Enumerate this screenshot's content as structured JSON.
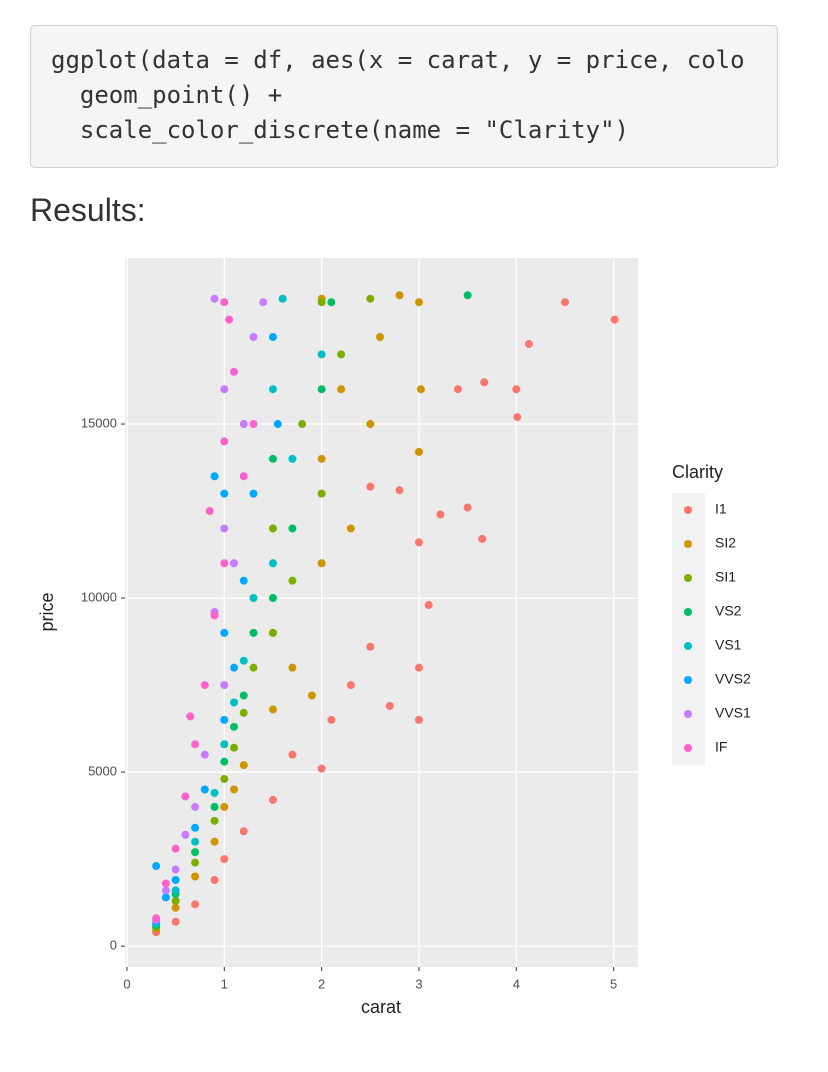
{
  "code": {
    "lines": [
      "ggplot(data = df, aes(x = carat, y = price, colo",
      "  geom_point() +",
      "  scale_color_discrete(name = \"Clarity\")"
    ]
  },
  "heading": "Results:",
  "chart_data": {
    "type": "scatter",
    "xlabel": "carat",
    "ylabel": "price",
    "legend_title": "Clarity",
    "xlim": [
      -0.02,
      5.25
    ],
    "ylim": [
      -600,
      19770
    ],
    "xticks": [
      0,
      1,
      2,
      3,
      4,
      5
    ],
    "yticks": [
      0,
      5000,
      10000,
      15000
    ],
    "grid": true,
    "legend": "right",
    "series": [
      {
        "name": "I1",
        "color": "#F8766D",
        "x": [
          0.3,
          0.5,
          0.7,
          0.9,
          1.0,
          1.2,
          1.5,
          1.7,
          2.0,
          2.1,
          2.3,
          2.5,
          2.7,
          3.0,
          3.0,
          3.0,
          3.1,
          3.22,
          3.5,
          3.65,
          3.4,
          3.67,
          4.0,
          4.01,
          4.13,
          4.5,
          5.01,
          2.5,
          2.8
        ],
        "values": [
          400,
          700,
          1200,
          1900,
          2500,
          3300,
          4200,
          5500,
          5100,
          6500,
          7500,
          8600,
          6900,
          6500,
          8000,
          11600,
          9800,
          12400,
          12600,
          11700,
          16000,
          16200,
          16000,
          15200,
          17300,
          18500,
          18000,
          13200,
          13100
        ]
      },
      {
        "name": "SI2",
        "color": "#CD9600",
        "x": [
          0.3,
          0.5,
          0.7,
          0.9,
          1.0,
          1.1,
          1.2,
          1.5,
          1.5,
          1.7,
          2.0,
          2.0,
          2.0,
          2.2,
          2.5,
          2.6,
          2.8,
          3.0,
          3.0,
          3.02,
          2.3,
          1.9
        ],
        "values": [
          500,
          1100,
          2000,
          3000,
          4000,
          4500,
          5200,
          6800,
          9000,
          8000,
          11000,
          14000,
          18600,
          16000,
          15000,
          17500,
          18700,
          18500,
          14200,
          16000,
          12000,
          7200
        ]
      },
      {
        "name": "SI1",
        "color": "#7CAE00",
        "x": [
          0.3,
          0.5,
          0.7,
          0.9,
          1.0,
          1.1,
          1.2,
          1.5,
          1.5,
          1.7,
          1.8,
          2.0,
          2.0,
          2.2,
          2.5,
          1.3
        ],
        "values": [
          550,
          1300,
          2400,
          3600,
          4800,
          5700,
          6700,
          9000,
          12000,
          10500,
          15000,
          13000,
          18500,
          17000,
          18600,
          8000
        ]
      },
      {
        "name": "VS2",
        "color": "#00BE67",
        "x": [
          0.3,
          0.5,
          0.7,
          0.9,
          1.0,
          1.1,
          1.2,
          1.5,
          1.5,
          1.6,
          1.7,
          2.0,
          2.1,
          3.5,
          1.3
        ],
        "values": [
          600,
          1500,
          2700,
          4000,
          5300,
          6300,
          7200,
          10000,
          14000,
          18600,
          12000,
          16000,
          18500,
          18700,
          9000
        ]
      },
      {
        "name": "VS1",
        "color": "#00BFC4",
        "x": [
          0.3,
          0.5,
          0.7,
          0.9,
          1.0,
          1.1,
          1.2,
          1.5,
          1.5,
          1.6,
          1.7,
          2.0,
          1.3
        ],
        "values": [
          650,
          1600,
          3000,
          4400,
          5800,
          7000,
          8200,
          11000,
          16000,
          18600,
          14000,
          17000,
          10000
        ]
      },
      {
        "name": "VVS2",
        "color": "#00A9FF",
        "x": [
          0.3,
          0.4,
          0.5,
          0.7,
          0.8,
          1.0,
          1.0,
          1.1,
          1.2,
          1.3,
          1.5,
          1.55,
          0.9,
          1.0,
          0.3
        ],
        "values": [
          700,
          1400,
          1900,
          3400,
          4500,
          6500,
          9000,
          8000,
          10500,
          13000,
          17500,
          15000,
          13500,
          13000,
          2300
        ]
      },
      {
        "name": "VVS1",
        "color": "#C77CFF",
        "x": [
          0.3,
          0.4,
          0.5,
          0.6,
          0.7,
          0.8,
          0.9,
          1.0,
          1.0,
          1.1,
          1.2,
          1.3,
          1.4,
          1.0,
          0.9
        ],
        "values": [
          750,
          1600,
          2200,
          3200,
          4000,
          5500,
          9600,
          7500,
          12000,
          11000,
          15000,
          17500,
          18500,
          16000,
          18600
        ]
      },
      {
        "name": "IF",
        "color": "#FF61CC",
        "x": [
          0.3,
          0.4,
          0.5,
          0.6,
          0.65,
          0.7,
          0.8,
          0.9,
          1.0,
          1.0,
          1.0,
          1.05,
          1.1,
          1.2,
          1.3,
          0.85
        ],
        "values": [
          800,
          1800,
          2800,
          4300,
          6600,
          5800,
          7500,
          9500,
          11000,
          14500,
          18500,
          18000,
          16500,
          13500,
          15000,
          12500
        ]
      }
    ]
  }
}
